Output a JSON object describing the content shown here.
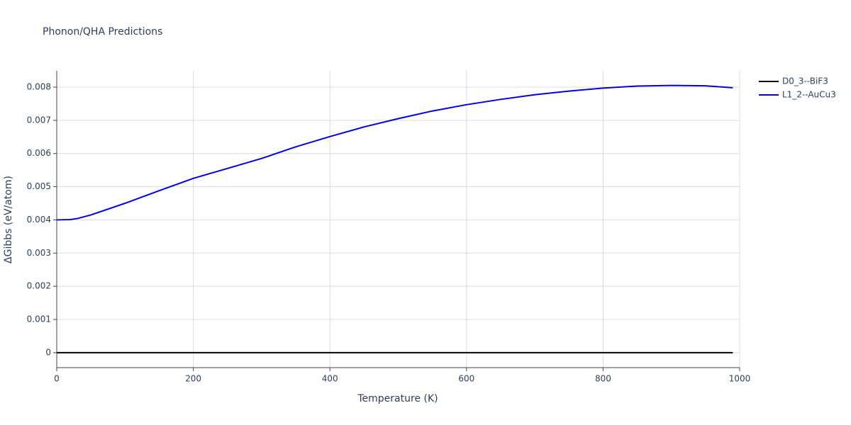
{
  "chart_data": {
    "type": "line",
    "title": "Phonon/QHA Predictions",
    "x_label": "Temperature (K)",
    "y_label": "ΔGibbs (eV/atom)",
    "x": [
      0,
      20,
      30,
      50,
      100,
      150,
      200,
      250,
      300,
      350,
      400,
      450,
      500,
      550,
      600,
      650,
      700,
      750,
      800,
      850,
      900,
      950,
      990
    ],
    "series": [
      {
        "name": "D0_3--BiF3",
        "color": "#000000",
        "values": [
          0,
          0,
          0,
          0,
          0,
          0,
          0,
          0,
          0,
          0,
          0,
          0,
          0,
          0,
          0,
          0,
          0,
          0,
          0,
          0,
          0,
          0,
          0
        ]
      },
      {
        "name": "L1_2--AuCu3",
        "color": "#0000ee",
        "values": [
          0.004,
          0.00401,
          0.00404,
          0.00415,
          0.0045,
          0.00488,
          0.00525,
          0.00555,
          0.00585,
          0.0062,
          0.00651,
          0.0068,
          0.00705,
          0.00728,
          0.00747,
          0.00763,
          0.00777,
          0.00788,
          0.00797,
          0.00803,
          0.00805,
          0.00804,
          0.00798
        ]
      }
    ],
    "xlim": [
      0,
      1000
    ],
    "xticks": [
      0,
      200,
      400,
      600,
      800,
      1000
    ],
    "ylim": [
      -0.00045,
      0.00849
    ],
    "yticks": [
      0,
      0.001,
      0.002,
      0.003,
      0.004,
      0.005,
      0.006,
      0.007,
      0.008
    ],
    "grid": true,
    "legend": "outside-right"
  }
}
